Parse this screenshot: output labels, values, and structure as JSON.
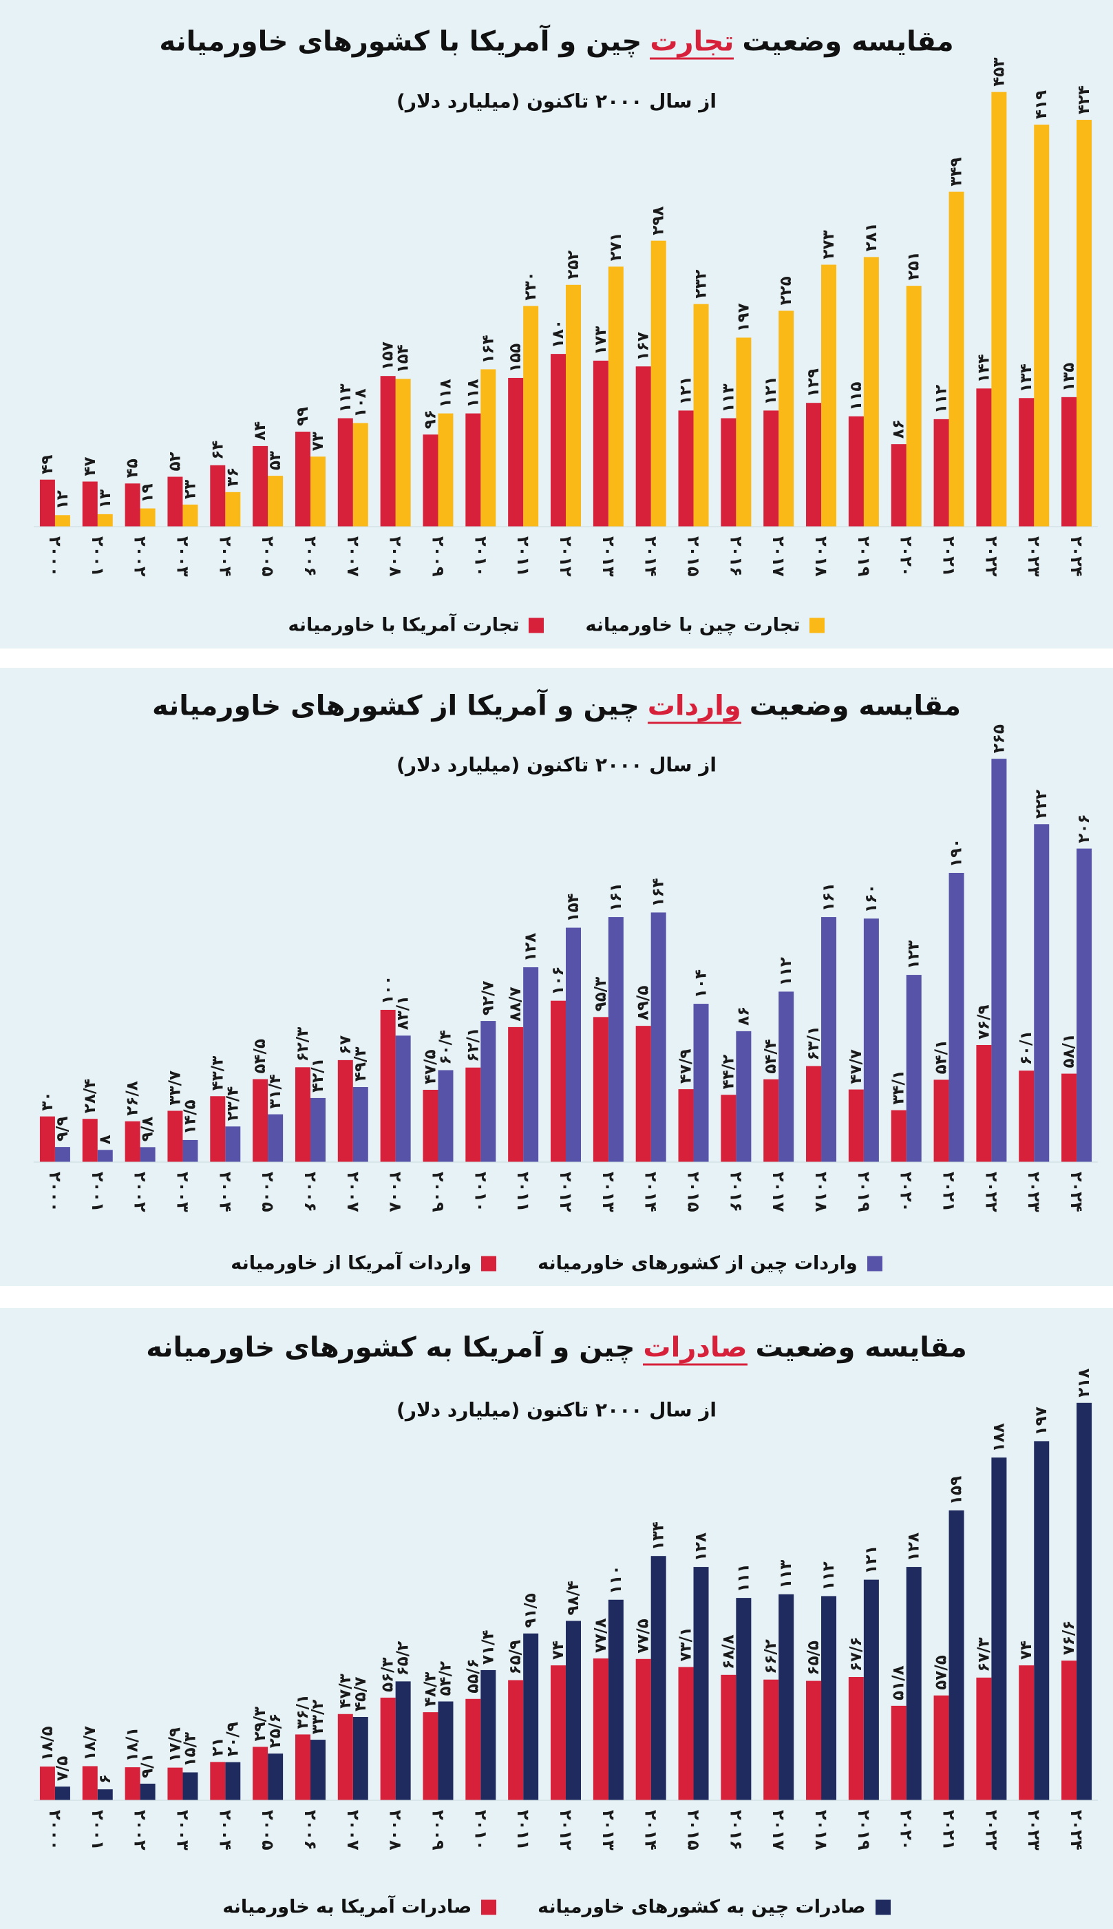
{
  "chart_data": [
    {
      "type": "bar",
      "title": {
        "start": "مقایسه وضعیت",
        "highlight": "تجارت",
        "end": "چین و آمریکا با کشورهای خاورمیانه"
      },
      "subtitle": "از سال ۲۰۰۰ تاکنون (میلیارد دلار)",
      "categories": [
        "۲۰۰۰",
        "۲۰۰۱",
        "۲۰۰۲",
        "۲۰۰۳",
        "۲۰۰۴",
        "۲۰۰۵",
        "۲۰۰۶",
        "۲۰۰۷",
        "۲۰۰۸",
        "۲۰۰۹",
        "۲۰۱۰",
        "۲۰۱۱",
        "۲۰۱۲",
        "۲۰۱۳",
        "۲۰۱۴",
        "۲۰۱۵",
        "۲۰۱۶",
        "۲۰۱۷",
        "۲۰۱۸",
        "۲۰۱۹",
        "۲۰۲۰",
        "۲۰۲۱",
        "۲۰۲۲",
        "۲۰۲۳",
        "۲۰۲۴"
      ],
      "ylim": [
        0,
        480
      ],
      "series": [
        {
          "name": "تجارت چین با خاورمیانه",
          "color": "#fbb918",
          "values": [
            12,
            13,
            19,
            23,
            36,
            53,
            73,
            108,
            154,
            118,
            164,
            230,
            252,
            271,
            298,
            232,
            197,
            225,
            273,
            281,
            251,
            349,
            453,
            419,
            424
          ],
          "value_labels": [
            "۱۲",
            "۱۳",
            "۱۹",
            "۲۳",
            "۳۶",
            "۵۳",
            "۷۳",
            "۱۰۸",
            "۱۵۴",
            "۱۱۸",
            "۱۶۴",
            "۲۳۰",
            "۲۵۲",
            "۲۷۱",
            "۲۹۸",
            "۲۳۲",
            "۱۹۷",
            "۲۲۵",
            "۲۷۳",
            "۲۸۱",
            "۲۵۱",
            "۳۴۹",
            "۴۵۳",
            "۴۱۹",
            "۴۲۴"
          ]
        },
        {
          "name": "تجارت آمریکا با خاورمیانه",
          "color": "#d7213a",
          "values": [
            49,
            47,
            45,
            52,
            64,
            84,
            99,
            113,
            157,
            96,
            118,
            155,
            180,
            173,
            167,
            121,
            113,
            121,
            129,
            115,
            86,
            112,
            144,
            134,
            135
          ],
          "value_labels": [
            "۴۹",
            "۴۷",
            "۴۵",
            "۵۲",
            "۶۴",
            "۸۴",
            "۹۹",
            "۱۱۳",
            "۱۵۷",
            "۹۶",
            "۱۱۸",
            "۱۵۵",
            "۱۸۰",
            "۱۷۳",
            "۱۶۷",
            "۱۲۱",
            "۱۱۳",
            "۱۲۱",
            "۱۲۹",
            "۱۱۵",
            "۸۶",
            "۱۱۲",
            "۱۴۴",
            "۱۳۴",
            "۱۳۵"
          ]
        }
      ]
    },
    {
      "type": "bar",
      "title": {
        "start": "مقایسه وضعیت",
        "highlight": "واردات",
        "end": "چین و آمریکا از کشورهای خاورمیانه"
      },
      "subtitle": "از سال ۲۰۰۰ تاکنون (میلیارد دلار)",
      "categories": [
        "۲۰۰۰",
        "۲۰۰۱",
        "۲۰۰۲",
        "۲۰۰۳",
        "۲۰۰۴",
        "۲۰۰۵",
        "۲۰۰۶",
        "۲۰۰۷",
        "۲۰۰۸",
        "۲۰۰۹",
        "۲۰۱۰",
        "۲۰۱۱",
        "۲۰۱۲",
        "۲۰۱۳",
        "۲۰۱۴",
        "۲۰۱۵",
        "۲۰۱۶",
        "۲۰۱۷",
        "۲۰۱۸",
        "۲۰۱۹",
        "۲۰۲۰",
        "۲۰۲۱",
        "۲۰۲۲",
        "۲۰۲۳",
        "۲۰۲۴"
      ],
      "ylim": [
        0,
        280
      ],
      "series": [
        {
          "name": "واردات چین از کشورهای خاورمیانه",
          "color": "#5653a8",
          "values": [
            9.9,
            8,
            9.8,
            14.5,
            23.4,
            31.4,
            42.1,
            49.3,
            83.1,
            60.4,
            92.7,
            128,
            154,
            161,
            164,
            104,
            86,
            112,
            161,
            160,
            123,
            190,
            265,
            222,
            206
          ],
          "value_labels": [
            "۹/۹",
            "۸",
            "۹/۸",
            "۱۴/۵",
            "۲۳/۴",
            "۳۱/۴",
            "۴۲/۱",
            "۴۹/۳",
            "۸۳/۱",
            "۶۰/۴",
            "۹۲/۷",
            "۱۲۸",
            "۱۵۴",
            "۱۶۱",
            "۱۶۴",
            "۱۰۴",
            "۸۶",
            "۱۱۲",
            "۱۶۱",
            "۱۶۰",
            "۱۲۳",
            "۱۹۰",
            "۲۶۵",
            "۲۲۲",
            "۲۰۶"
          ]
        },
        {
          "name": "واردات آمریکا از خاورمیانه",
          "color": "#d7213a",
          "values": [
            30,
            28.4,
            26.8,
            33.7,
            43.3,
            54.5,
            62.3,
            67,
            100,
            47.5,
            62.1,
            88.7,
            106,
            95.3,
            89.5,
            47.9,
            44.2,
            54.4,
            63.1,
            47.7,
            34.1,
            54.1,
            76.9,
            60.1,
            58.1
          ],
          "value_labels": [
            "۳۰",
            "۲۸/۴",
            "۲۶/۸",
            "۳۳/۷",
            "۴۳/۳",
            "۵۴/۵",
            "۶۲/۳",
            "۶۷",
            "۱۰۰",
            "۴۷/۵",
            "۶۲/۱",
            "۸۸/۷",
            "۱۰۶",
            "۹۵/۳",
            "۸۹/۵",
            "۴۷/۹",
            "۴۴/۲",
            "۵۴/۴",
            "۶۳/۱",
            "۴۷/۷",
            "۳۴/۱",
            "۵۴/۱",
            "۷۶/۹",
            "۶۰/۱",
            "۵۸/۱"
          ]
        }
      ]
    },
    {
      "type": "bar",
      "title": {
        "start": "مقایسه وضعیت",
        "highlight": "صادرات",
        "end": "چین و آمریکا به کشورهای خاورمیانه"
      },
      "subtitle": "از سال ۲۰۰۰ تاکنون (میلیارد دلار)",
      "categories": [
        "۲۰۰۰",
        "۲۰۰۱",
        "۲۰۰۲",
        "۲۰۰۳",
        "۲۰۰۴",
        "۲۰۰۵",
        "۲۰۰۶",
        "۲۰۰۷",
        "۲۰۰۸",
        "۲۰۰۹",
        "۲۰۱۰",
        "۲۰۱۱",
        "۲۰۱۲",
        "۲۰۱۳",
        "۲۰۱۴",
        "۲۰۱۵",
        "۲۰۱۶",
        "۲۰۱۷",
        "۲۰۱۸",
        "۲۰۱۹",
        "۲۰۲۰",
        "۲۰۲۱",
        "۲۰۲۲",
        "۲۰۲۳",
        "۲۰۲۴"
      ],
      "ylim": [
        0,
        230
      ],
      "series": [
        {
          "name": "صادرات چین به کشورهای خاورمیانه",
          "color": "#1f2a5e",
          "values": [
            7.5,
            6,
            9.1,
            15.3,
            20.9,
            25.6,
            33.2,
            45.7,
            65.2,
            54.2,
            71.4,
            91.5,
            98.4,
            110,
            134,
            128,
            111,
            113,
            112,
            121,
            128,
            159,
            188,
            197,
            218
          ],
          "value_labels": [
            "۷/۵",
            "۶",
            "۹/۱",
            "۱۵/۳",
            "۲۰/۹",
            "۲۵/۶",
            "۳۳/۲",
            "۴۵/۷",
            "۶۵/۲",
            "۵۴/۲",
            "۷۱/۴",
            "۹۱/۵",
            "۹۸/۴",
            "۱۱۰",
            "۱۳۴",
            "۱۲۸",
            "۱۱۱",
            "۱۱۳",
            "۱۱۲",
            "۱۲۱",
            "۱۲۸",
            "۱۵۹",
            "۱۸۸",
            "۱۹۷",
            "۲۱۸"
          ]
        },
        {
          "name": "صادرات آمریکا به خاورمیانه",
          "color": "#d7213a",
          "values": [
            18.5,
            18.7,
            18.1,
            17.9,
            21,
            29.3,
            36.1,
            47.3,
            56.3,
            48.3,
            55.6,
            65.9,
            74,
            77.8,
            77.5,
            73.1,
            68.8,
            66.2,
            65.5,
            67.6,
            51.8,
            57.5,
            67.3,
            74,
            76.6
          ],
          "value_labels": [
            "۱۸/۵",
            "۱۸/۷",
            "۱۸/۱",
            "۱۷/۹",
            "۲۱",
            "۲۹/۳",
            "۳۶/۱",
            "۴۷/۳",
            "۵۶/۳",
            "۴۸/۳",
            "۵۵/۶",
            "۶۵/۹",
            "۷۴",
            "۷۷/۸",
            "۷۷/۵",
            "۷۳/۱",
            "۶۸/۸",
            "۶۶/۲",
            "۶۵/۵",
            "۶۷/۶",
            "۵۱/۸",
            "۵۷/۵",
            "۶۷/۳",
            "۷۴",
            "۷۶/۶"
          ]
        }
      ]
    }
  ]
}
